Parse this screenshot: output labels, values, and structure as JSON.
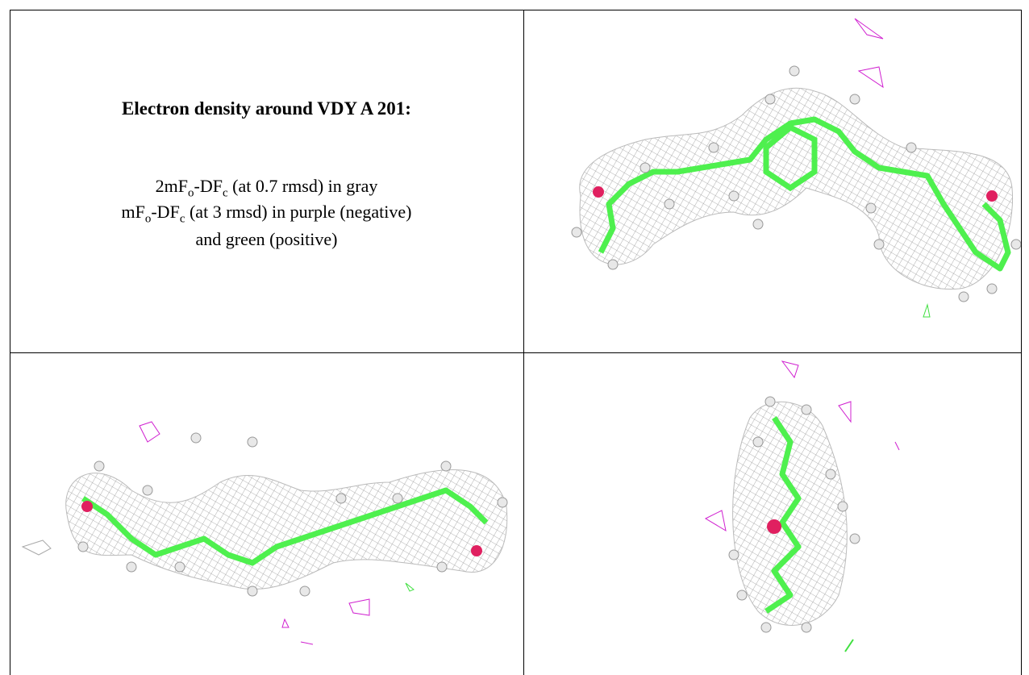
{
  "caption": {
    "title": "Electron density around VDY A 201:",
    "lines": [
      [
        "2mF",
        "o",
        "-DF",
        "c",
        " (at 0.7 rmsd) in gray"
      ],
      [
        "mF",
        "o",
        "-DF",
        "c",
        " (at 3 rmsd) in purple (negative)"
      ],
      [
        "and green (positive)"
      ]
    ]
  }
}
